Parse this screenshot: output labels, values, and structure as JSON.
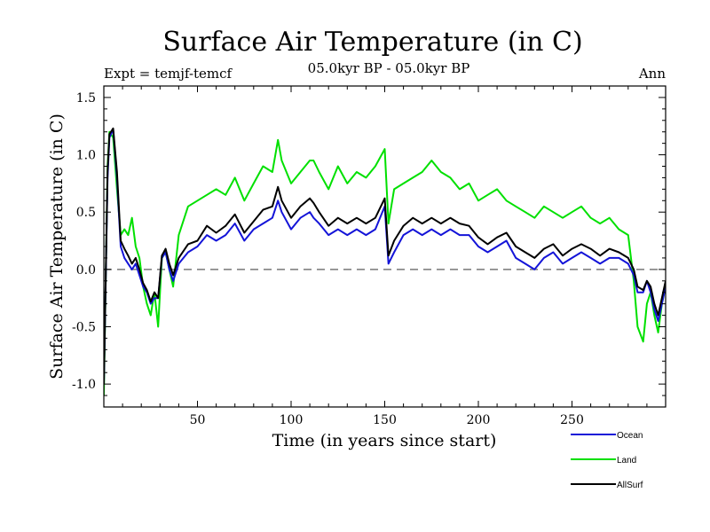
{
  "chart_data": {
    "type": "line",
    "title": "Surface Air Temperature (in C)",
    "subtitle_left": "Expt = temjf-temcf",
    "subtitle_center": "05.0kyr BP - 05.0kyr BP",
    "subtitle_right": "Ann",
    "xlabel": "Time (in years since start)",
    "ylabel": "Surface Air Temperature (in C)",
    "xlim": [
      0,
      300
    ],
    "ylim": [
      -1.2,
      1.6
    ],
    "xticks": [
      50,
      100,
      150,
      200,
      250
    ],
    "xtick_labels": [
      "50",
      "100",
      "150",
      "200",
      "250"
    ],
    "yticks": [
      -1.0,
      -0.5,
      0.0,
      0.5,
      1.0,
      1.5
    ],
    "ytick_labels": [
      "-1.0",
      "-0.5",
      "0.0",
      "0.5",
      "1.0",
      "1.5"
    ],
    "zero_line": 0.0,
    "legend_position": "bottom-right, outside plot",
    "series": [
      {
        "name": "Land",
        "color": "#00e000",
        "x": [
          0,
          2,
          3,
          5,
          7,
          9,
          11,
          13,
          15,
          17,
          19,
          21,
          23,
          25,
          27,
          29,
          31,
          33,
          35,
          37,
          40,
          45,
          50,
          55,
          60,
          65,
          70,
          75,
          80,
          85,
          90,
          93,
          95,
          100,
          105,
          110,
          112,
          115,
          120,
          125,
          130,
          135,
          140,
          145,
          150,
          152,
          155,
          160,
          165,
          170,
          175,
          180,
          185,
          190,
          195,
          200,
          205,
          210,
          215,
          220,
          225,
          230,
          235,
          240,
          245,
          250,
          255,
          260,
          265,
          270,
          275,
          280,
          283,
          285,
          288,
          290,
          292,
          294,
          296,
          298,
          300
        ],
        "values": [
          -1.1,
          0.9,
          1.2,
          1.15,
          0.7,
          0.3,
          0.35,
          0.3,
          0.45,
          0.2,
          0.1,
          -0.15,
          -0.3,
          -0.4,
          -0.2,
          -0.5,
          0.1,
          0.15,
          0.0,
          -0.15,
          0.3,
          0.55,
          0.6,
          0.65,
          0.7,
          0.65,
          0.8,
          0.6,
          0.75,
          0.9,
          0.85,
          1.13,
          0.95,
          0.75,
          0.85,
          0.95,
          0.95,
          0.85,
          0.7,
          0.9,
          0.75,
          0.85,
          0.8,
          0.9,
          1.05,
          0.4,
          0.7,
          0.75,
          0.8,
          0.85,
          0.95,
          0.85,
          0.8,
          0.7,
          0.75,
          0.6,
          0.65,
          0.7,
          0.6,
          0.55,
          0.5,
          0.45,
          0.55,
          0.5,
          0.45,
          0.5,
          0.55,
          0.45,
          0.4,
          0.45,
          0.35,
          0.3,
          -0.1,
          -0.5,
          -0.63,
          -0.3,
          -0.2,
          -0.4,
          -0.55,
          -0.3,
          -0.15
        ]
      },
      {
        "name": "Ocean",
        "color": "#1414d8",
        "x": [
          0,
          2,
          3,
          5,
          7,
          9,
          11,
          13,
          15,
          17,
          19,
          21,
          23,
          25,
          27,
          29,
          31,
          33,
          35,
          37,
          40,
          45,
          50,
          55,
          60,
          65,
          70,
          75,
          80,
          85,
          90,
          93,
          95,
          100,
          105,
          110,
          112,
          115,
          120,
          125,
          130,
          135,
          140,
          145,
          150,
          152,
          155,
          160,
          165,
          170,
          175,
          180,
          185,
          190,
          195,
          200,
          205,
          210,
          215,
          220,
          225,
          230,
          235,
          240,
          245,
          250,
          255,
          260,
          265,
          270,
          275,
          280,
          283,
          285,
          288,
          290,
          292,
          294,
          296,
          298,
          300
        ],
        "values": [
          -1.0,
          0.8,
          1.15,
          1.22,
          0.8,
          0.2,
          0.1,
          0.05,
          0.0,
          0.05,
          -0.05,
          -0.15,
          -0.2,
          -0.3,
          -0.25,
          -0.25,
          0.1,
          0.15,
          0.0,
          -0.1,
          0.05,
          0.15,
          0.2,
          0.3,
          0.25,
          0.3,
          0.4,
          0.25,
          0.35,
          0.4,
          0.45,
          0.6,
          0.5,
          0.35,
          0.45,
          0.5,
          0.45,
          0.4,
          0.3,
          0.35,
          0.3,
          0.35,
          0.3,
          0.35,
          0.55,
          0.05,
          0.15,
          0.3,
          0.35,
          0.3,
          0.35,
          0.3,
          0.35,
          0.3,
          0.3,
          0.2,
          0.15,
          0.2,
          0.25,
          0.1,
          0.05,
          0.0,
          0.1,
          0.15,
          0.05,
          0.1,
          0.15,
          0.1,
          0.05,
          0.1,
          0.1,
          0.05,
          -0.05,
          -0.2,
          -0.2,
          -0.1,
          -0.2,
          -0.35,
          -0.45,
          -0.3,
          -0.15
        ]
      },
      {
        "name": "AllSurf",
        "color": "#000000",
        "x": [
          0,
          2,
          3,
          5,
          7,
          9,
          11,
          13,
          15,
          17,
          19,
          21,
          23,
          25,
          27,
          29,
          31,
          33,
          35,
          37,
          40,
          45,
          50,
          55,
          60,
          65,
          70,
          75,
          80,
          85,
          90,
          93,
          95,
          100,
          105,
          110,
          112,
          115,
          120,
          125,
          130,
          135,
          140,
          145,
          150,
          152,
          155,
          160,
          165,
          170,
          175,
          180,
          185,
          190,
          195,
          200,
          205,
          210,
          215,
          220,
          225,
          230,
          235,
          240,
          245,
          250,
          255,
          260,
          265,
          270,
          275,
          280,
          283,
          285,
          288,
          290,
          292,
          294,
          296,
          298,
          300
        ],
        "values": [
          -1.0,
          0.85,
          1.18,
          1.23,
          0.85,
          0.25,
          0.18,
          0.12,
          0.05,
          0.1,
          0.0,
          -0.12,
          -0.18,
          -0.28,
          -0.2,
          -0.25,
          0.12,
          0.18,
          0.05,
          -0.05,
          0.1,
          0.22,
          0.25,
          0.38,
          0.32,
          0.38,
          0.48,
          0.32,
          0.42,
          0.52,
          0.55,
          0.72,
          0.6,
          0.45,
          0.55,
          0.62,
          0.58,
          0.5,
          0.38,
          0.45,
          0.4,
          0.45,
          0.4,
          0.45,
          0.62,
          0.12,
          0.25,
          0.38,
          0.45,
          0.4,
          0.45,
          0.4,
          0.45,
          0.4,
          0.38,
          0.28,
          0.22,
          0.28,
          0.32,
          0.2,
          0.15,
          0.1,
          0.18,
          0.22,
          0.12,
          0.18,
          0.22,
          0.18,
          0.12,
          0.18,
          0.15,
          0.1,
          0.0,
          -0.15,
          -0.18,
          -0.1,
          -0.15,
          -0.3,
          -0.4,
          -0.25,
          -0.1
        ]
      }
    ]
  }
}
